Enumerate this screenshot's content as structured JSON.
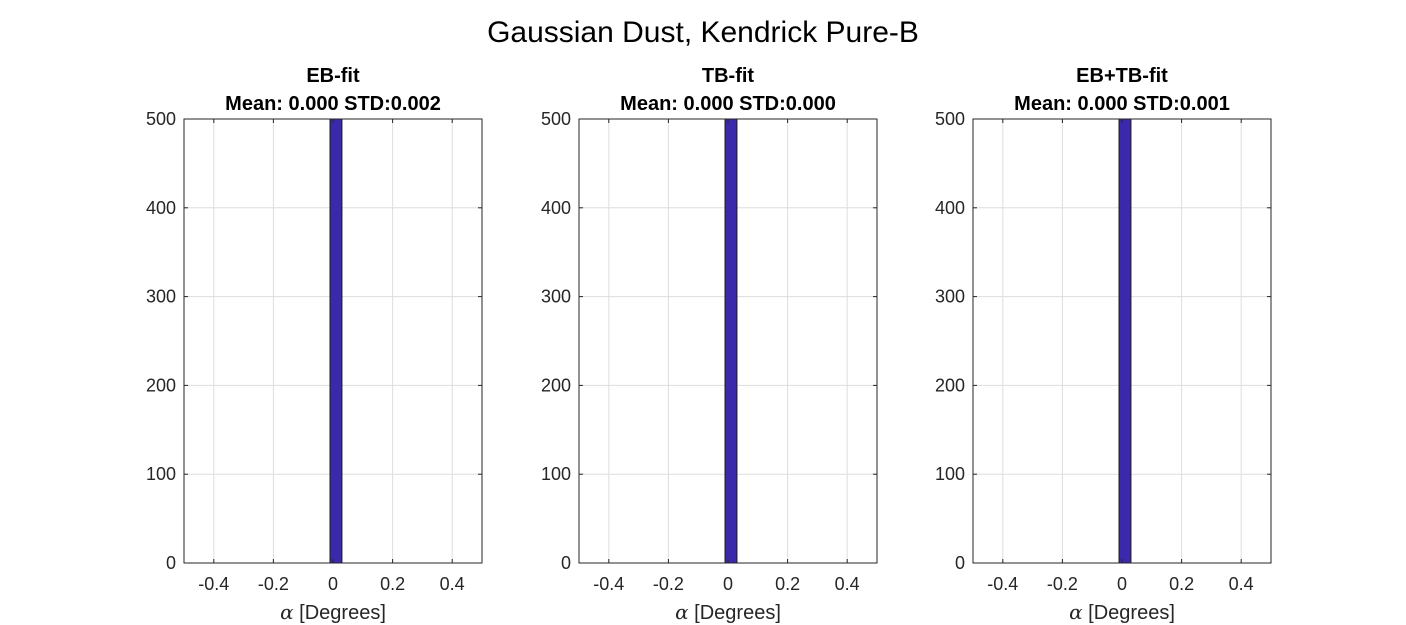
{
  "figure": {
    "title": "Gaussian Dust, Kendrick Pure-B"
  },
  "colors": {
    "bar_fill": "#3a2aab",
    "bar_edge": "#1a1a1a",
    "grid": "#dedede",
    "axes": "#262626"
  },
  "chart_data": [
    {
      "type": "bar",
      "title_lines": [
        "EB-fit",
        "Mean: 0.000 STD:0.002"
      ],
      "xlabel_symbol": "α",
      "xlabel": "[Degrees]",
      "ylabel": "",
      "xlim": [
        -0.5,
        0.5
      ],
      "ylim": [
        0,
        500
      ],
      "xticks": [
        -0.4,
        -0.2,
        0,
        0.2,
        0.4
      ],
      "xtick_labels": [
        "-0.4",
        "-0.2",
        "0",
        "0.2",
        "0.4"
      ],
      "yticks": [
        0,
        100,
        200,
        300,
        400,
        500
      ],
      "ytick_labels": [
        "0",
        "100",
        "200",
        "300",
        "400",
        "500"
      ],
      "grid": true,
      "bars": [
        {
          "x_start": -0.01,
          "x_end": 0.03,
          "value": 500
        }
      ]
    },
    {
      "type": "bar",
      "title_lines": [
        "TB-fit",
        "Mean: 0.000 STD:0.000"
      ],
      "xlabel_symbol": "α",
      "xlabel": "[Degrees]",
      "ylabel": "",
      "xlim": [
        -0.5,
        0.5
      ],
      "ylim": [
        0,
        500
      ],
      "xticks": [
        -0.4,
        -0.2,
        0,
        0.2,
        0.4
      ],
      "xtick_labels": [
        "-0.4",
        "-0.2",
        "0",
        "0.2",
        "0.4"
      ],
      "yticks": [
        0,
        100,
        200,
        300,
        400,
        500
      ],
      "ytick_labels": [
        "0",
        "100",
        "200",
        "300",
        "400",
        "500"
      ],
      "grid": true,
      "bars": [
        {
          "x_start": -0.01,
          "x_end": 0.03,
          "value": 500
        }
      ]
    },
    {
      "type": "bar",
      "title_lines": [
        "EB+TB-fit",
        "Mean: 0.000 STD:0.001"
      ],
      "xlabel_symbol": "α",
      "xlabel": "[Degrees]",
      "ylabel": "",
      "xlim": [
        -0.5,
        0.5
      ],
      "ylim": [
        0,
        500
      ],
      "xticks": [
        -0.4,
        -0.2,
        0,
        0.2,
        0.4
      ],
      "xtick_labels": [
        "-0.4",
        "-0.2",
        "0",
        "0.2",
        "0.4"
      ],
      "yticks": [
        0,
        100,
        200,
        300,
        400,
        500
      ],
      "ytick_labels": [
        "0",
        "100",
        "200",
        "300",
        "400",
        "500"
      ],
      "grid": true,
      "bars": [
        {
          "x_start": -0.01,
          "x_end": 0.03,
          "value": 500
        }
      ]
    }
  ]
}
